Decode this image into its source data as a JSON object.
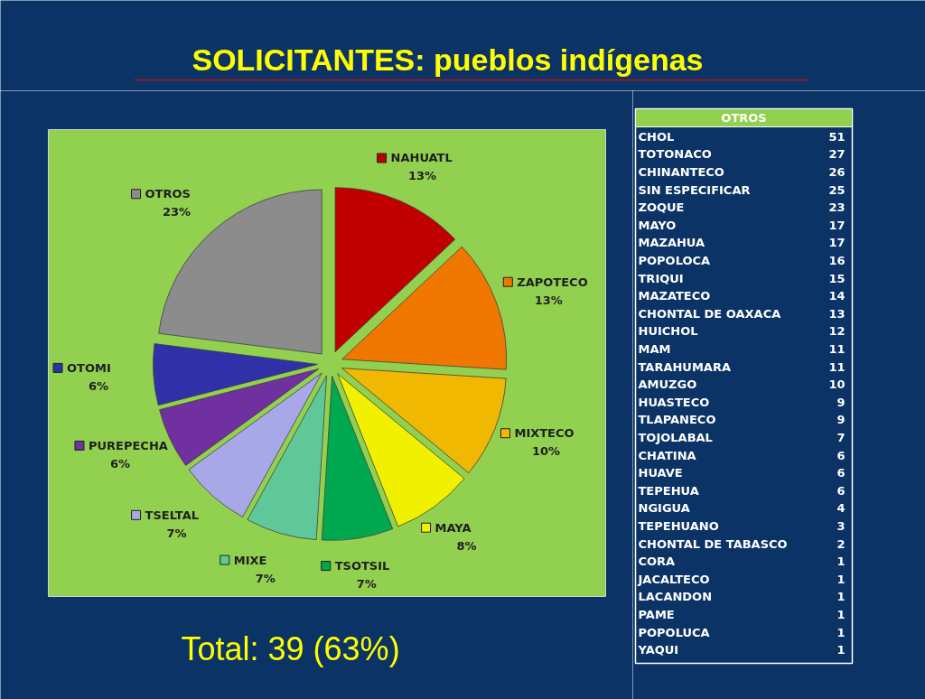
{
  "chart_data": [
    {
      "type": "pie",
      "title": "SOLICITANTES: pueblos indígenas",
      "categories": [
        "NAHUATL",
        "ZAPOTECO",
        "MIXTECO",
        "MAYA",
        "TSOTSIL",
        "MIXE",
        "TSELTAL",
        "PUREPECHA",
        "OTOMI",
        "OTROS"
      ],
      "values": [
        13,
        13,
        10,
        8,
        7,
        7,
        7,
        6,
        6,
        23
      ],
      "colors": [
        "#c00000",
        "#f07800",
        "#f0b800",
        "#f0f000",
        "#00a850",
        "#60c898",
        "#a8a8e8",
        "#7030a0",
        "#3030a8",
        "#8c8c8c"
      ],
      "value_labels": [
        "13%",
        "13%",
        "10%",
        "8%",
        "7%",
        "7%",
        "7%",
        "6%",
        "6%",
        "23%"
      ],
      "legend": "right",
      "annotations": [
        "Total: 39 (63%)"
      ]
    },
    {
      "type": "other",
      "title": "OTROS",
      "categories": [
        "CHOL",
        "TOTONACO",
        "CHINANTECO",
        "SIN ESPECIFICAR",
        "ZOQUE",
        "MAYO",
        "MAZAHUA",
        "POPOLOCA",
        "TRIQUI",
        "MAZATECO",
        "CHONTAL DE OAXACA",
        "HUICHOL",
        "MAM",
        "TARAHUMARA",
        "AMUZGO",
        "HUASTECO",
        "TLAPANECO",
        "TOJOLABAL",
        "CHATINA",
        "HUAVE",
        "TEPEHUA",
        "NGIGUA",
        "TEPEHUANO",
        "CHONTAL DE TABASCO",
        "CORA",
        "JACALTECO",
        "LACANDON",
        "PAME",
        "POPOLUCA",
        "YAQUI"
      ],
      "values": [
        51,
        27,
        26,
        25,
        23,
        17,
        17,
        16,
        15,
        14,
        13,
        12,
        11,
        11,
        10,
        9,
        9,
        7,
        6,
        6,
        6,
        4,
        3,
        2,
        1,
        1,
        1,
        1,
        1,
        1
      ],
      "data_labels": true
    }
  ]
}
